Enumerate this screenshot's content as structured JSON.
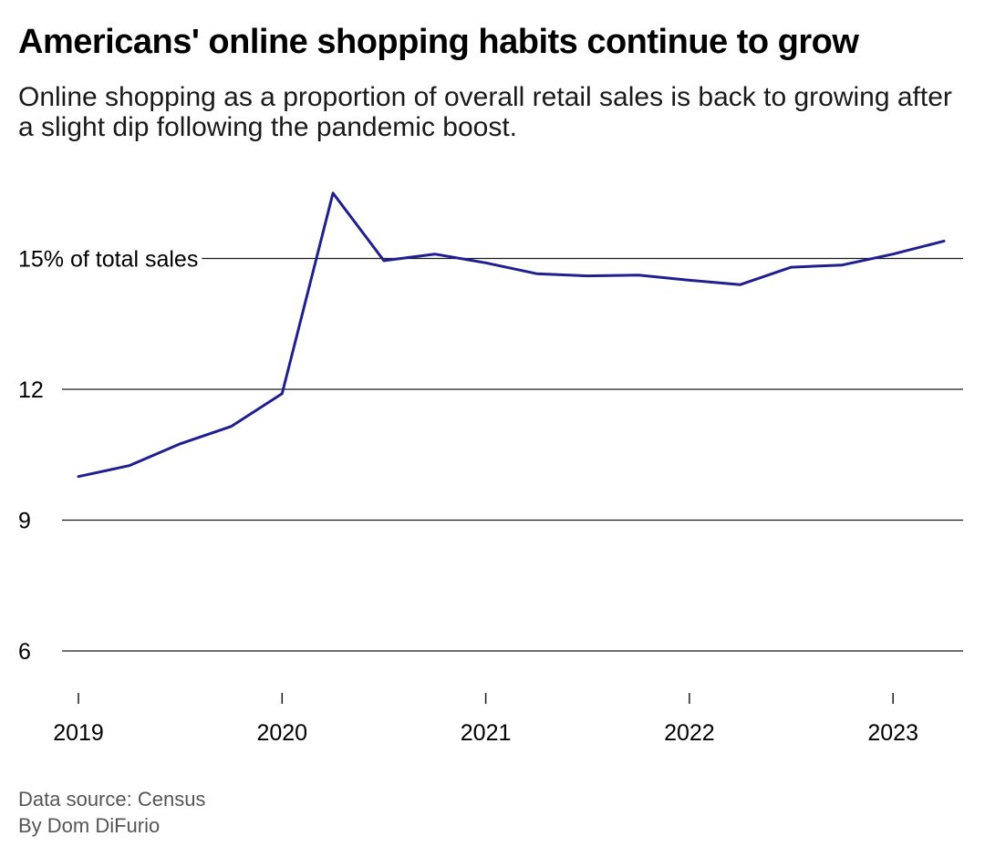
{
  "header": {
    "title": "Americans' online shopping habits continue to grow",
    "subtitle": "Online shopping as a proportion of overall retail sales is back to growing after a slight dip following the pandemic boost."
  },
  "footer": {
    "source": "Data source: Census",
    "byline": "By Dom DiFurio"
  },
  "chart_data": {
    "type": "line",
    "title": "Americans' online shopping habits continue to grow",
    "subtitle": "Online shopping as a proportion of overall retail sales is back to growing after a slight dip following the pandemic boost.",
    "xlabel": "",
    "ylabel": "",
    "x_tick_labels": [
      "2019",
      "2020",
      "2021",
      "2022",
      "2023"
    ],
    "y_ticks": [
      {
        "value": 6,
        "label": "6"
      },
      {
        "value": 9,
        "label": "9"
      },
      {
        "value": 12,
        "label": "12"
      },
      {
        "value": 15,
        "label": "15% of total sales"
      }
    ],
    "ylim": [
      5,
      17
    ],
    "grid": "horizontal",
    "color": "#1f1f8f",
    "series": [
      {
        "x": [
          "2019 Q1",
          "2019 Q2",
          "2019 Q3",
          "2019 Q4",
          "2020 Q1",
          "2020 Q2",
          "2020 Q3",
          "2020 Q4",
          "2021 Q1",
          "2021 Q2",
          "2021 Q3",
          "2021 Q4",
          "2022 Q1",
          "2022 Q2",
          "2022 Q3",
          "2022 Q4",
          "2023 Q1",
          "2023 Q2"
        ],
        "values": [
          10.0,
          10.25,
          10.75,
          11.15,
          11.9,
          16.5,
          14.95,
          15.1,
          14.9,
          14.65,
          14.6,
          14.62,
          14.5,
          14.4,
          14.8,
          14.85,
          15.1,
          15.4
        ]
      }
    ]
  }
}
